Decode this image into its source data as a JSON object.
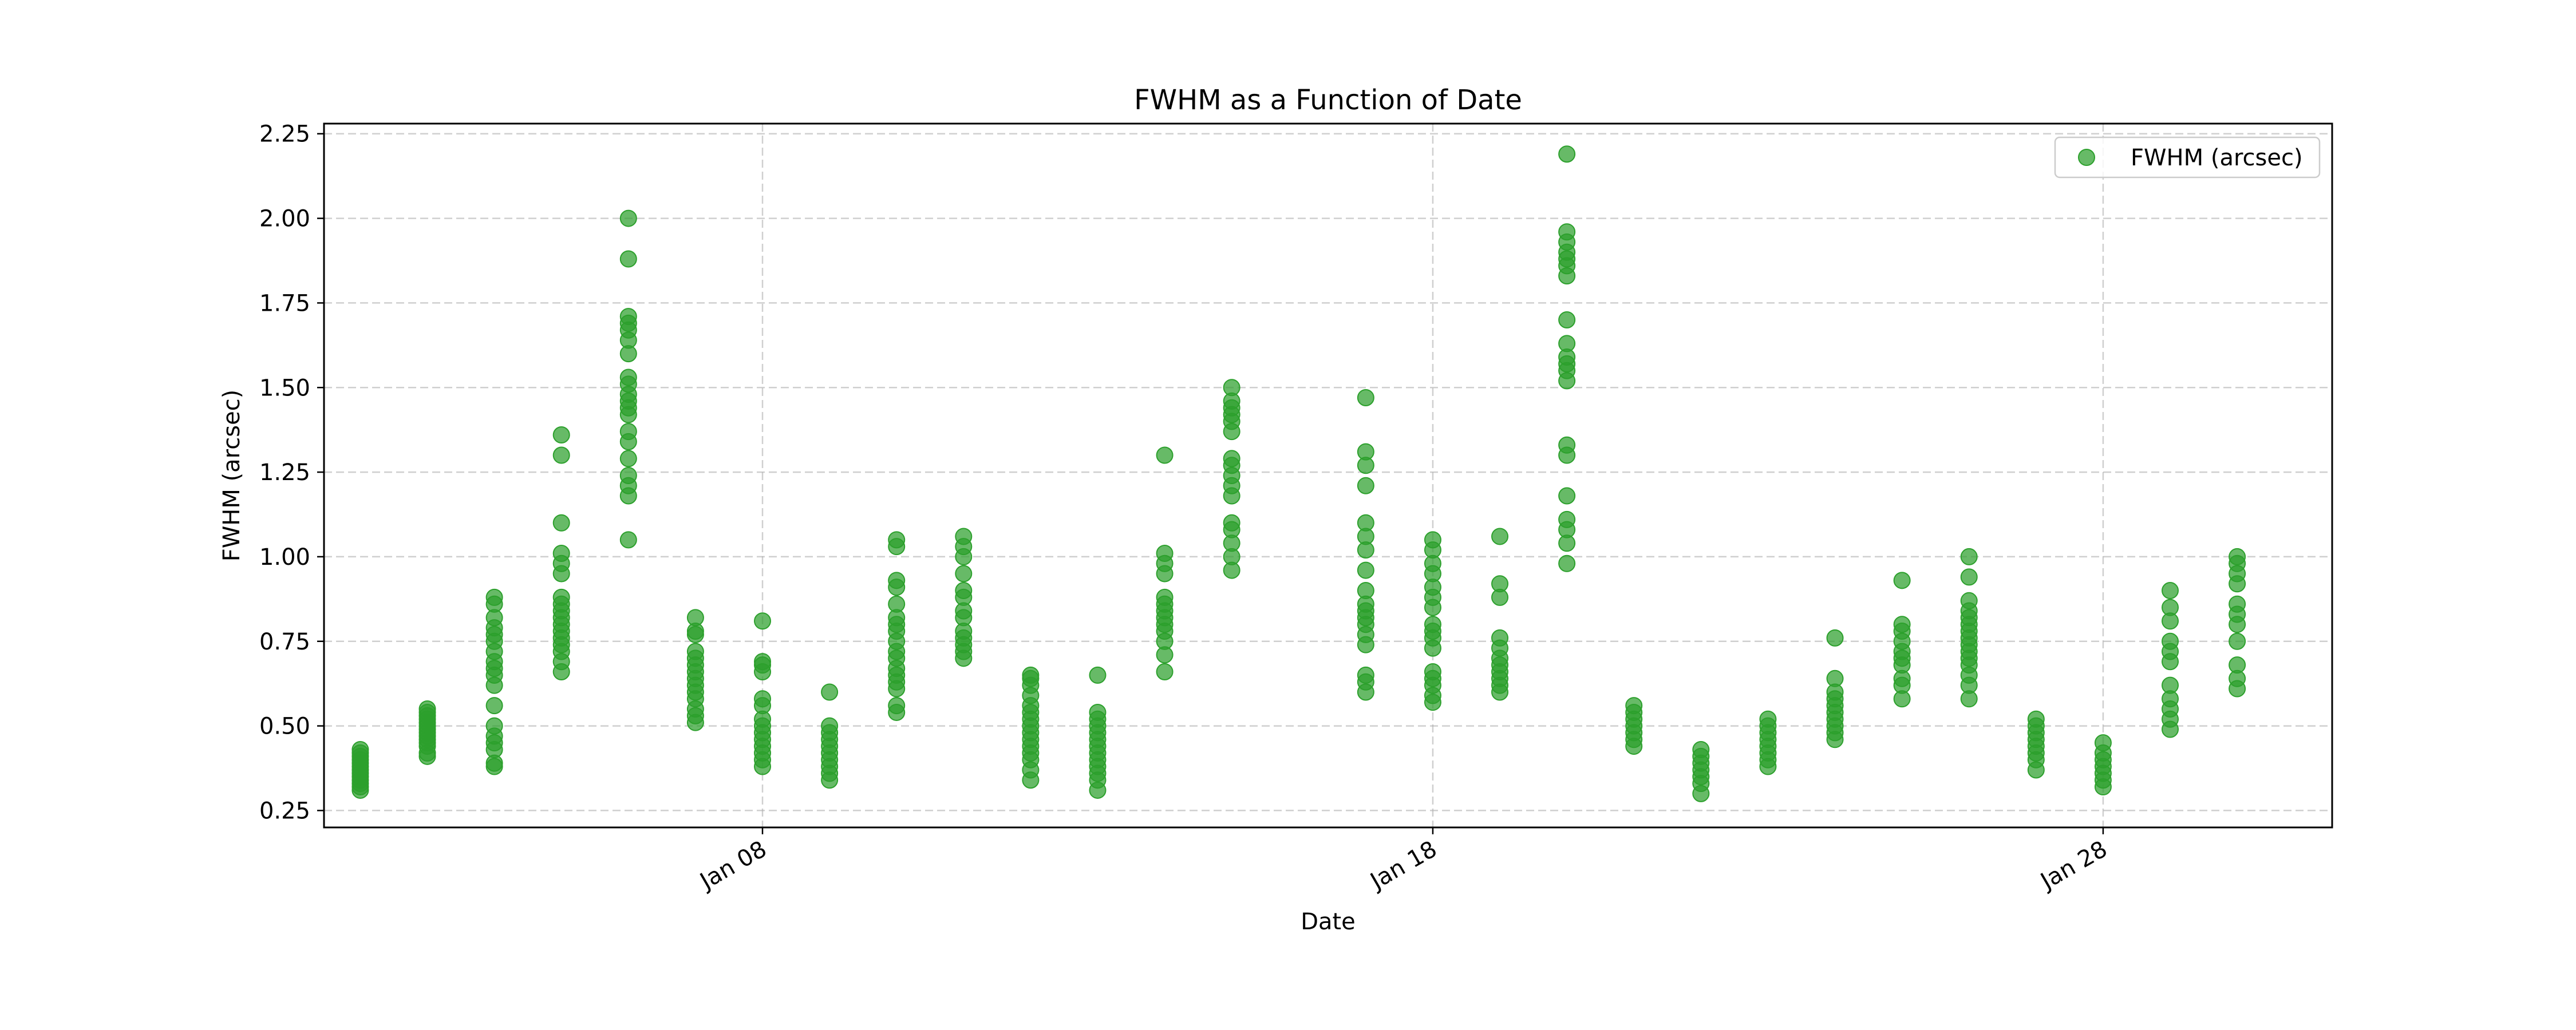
{
  "chart_data": {
    "type": "scatter",
    "title": "FWHM as a Function of Date",
    "xlabel": "Date",
    "ylabel": "FWHM (arcsec)",
    "legend": {
      "placement": "top-right",
      "entries": [
        "FWHM (arcsec)"
      ]
    },
    "grid": true,
    "color": "#2ca02c",
    "x_axis_type": "date",
    "x_range": [
      "2024-01-01T11:00",
      "2024-01-31T10:00"
    ],
    "x_ticks": [
      {
        "date": "2024-01-08",
        "label": "Jan 08"
      },
      {
        "date": "2024-01-18",
        "label": "Jan 18"
      },
      {
        "date": "2024-01-28",
        "label": "Jan 28"
      }
    ],
    "ylim": [
      0.2,
      2.28
    ],
    "y_ticks": [
      {
        "value": 0.25,
        "label": "0.25"
      },
      {
        "value": 0.5,
        "label": "0.50"
      },
      {
        "value": 0.75,
        "label": "0.75"
      },
      {
        "value": 1.0,
        "label": "1.00"
      },
      {
        "value": 1.25,
        "label": "1.25"
      },
      {
        "value": 1.5,
        "label": "1.50"
      },
      {
        "value": 1.75,
        "label": "1.75"
      },
      {
        "value": 2.0,
        "label": "2.00"
      },
      {
        "value": 2.25,
        "label": "2.25"
      }
    ],
    "series": [
      {
        "name": "FWHM (arcsec)",
        "groups": [
          {
            "date": "2024-01-02",
            "y": [
              0.31,
              0.32,
              0.33,
              0.34,
              0.35,
              0.36,
              0.37,
              0.38,
              0.39,
              0.4,
              0.41,
              0.42,
              0.43
            ]
          },
          {
            "date": "2024-01-03",
            "y": [
              0.41,
              0.42,
              0.44,
              0.45,
              0.46,
              0.47,
              0.48,
              0.49,
              0.5,
              0.51,
              0.52,
              0.53,
              0.54,
              0.55
            ]
          },
          {
            "date": "2024-01-04",
            "y": [
              0.38,
              0.39,
              0.43,
              0.45,
              0.47,
              0.5,
              0.56,
              0.62,
              0.65,
              0.67,
              0.69,
              0.72,
              0.75,
              0.77,
              0.79,
              0.82,
              0.86,
              0.88
            ]
          },
          {
            "date": "2024-01-05",
            "y": [
              0.66,
              0.69,
              0.72,
              0.74,
              0.76,
              0.78,
              0.8,
              0.82,
              0.84,
              0.86,
              0.88,
              0.95,
              0.98,
              1.01,
              1.1,
              1.3,
              1.36
            ]
          },
          {
            "date": "2024-01-06",
            "y": [
              1.05,
              1.18,
              1.21,
              1.24,
              1.29,
              1.34,
              1.37,
              1.42,
              1.44,
              1.46,
              1.48,
              1.51,
              1.53,
              1.6,
              1.64,
              1.67,
              1.69,
              1.71,
              1.88,
              2.0
            ]
          },
          {
            "date": "2024-01-07",
            "y": [
              0.51,
              0.53,
              0.55,
              0.58,
              0.6,
              0.62,
              0.64,
              0.66,
              0.68,
              0.7,
              0.72,
              0.77,
              0.78,
              0.82
            ]
          },
          {
            "date": "2024-01-08",
            "y": [
              0.38,
              0.4,
              0.42,
              0.44,
              0.46,
              0.48,
              0.5,
              0.52,
              0.56,
              0.58,
              0.66,
              0.68,
              0.69,
              0.81
            ]
          },
          {
            "date": "2024-01-09",
            "y": [
              0.34,
              0.36,
              0.38,
              0.4,
              0.42,
              0.44,
              0.46,
              0.48,
              0.5,
              0.6
            ]
          },
          {
            "date": "2024-01-10",
            "y": [
              0.54,
              0.56,
              0.61,
              0.63,
              0.65,
              0.67,
              0.7,
              0.72,
              0.75,
              0.78,
              0.8,
              0.82,
              0.86,
              0.91,
              0.93,
              1.03,
              1.05
            ]
          },
          {
            "date": "2024-01-11",
            "y": [
              0.7,
              0.72,
              0.74,
              0.76,
              0.78,
              0.82,
              0.84,
              0.88,
              0.9,
              0.95,
              1.0,
              1.03,
              1.06
            ]
          },
          {
            "date": "2024-01-12",
            "y": [
              0.34,
              0.37,
              0.4,
              0.42,
              0.44,
              0.46,
              0.48,
              0.5,
              0.52,
              0.54,
              0.56,
              0.59,
              0.62,
              0.64,
              0.65
            ]
          },
          {
            "date": "2024-01-13",
            "y": [
              0.31,
              0.34,
              0.36,
              0.38,
              0.4,
              0.42,
              0.44,
              0.46,
              0.48,
              0.5,
              0.52,
              0.54,
              0.65
            ]
          },
          {
            "date": "2024-01-14",
            "y": [
              0.66,
              0.71,
              0.75,
              0.78,
              0.8,
              0.82,
              0.84,
              0.86,
              0.88,
              0.95,
              0.98,
              1.01,
              1.3
            ]
          },
          {
            "date": "2024-01-15",
            "y": [
              0.96,
              1.0,
              1.04,
              1.08,
              1.1,
              1.18,
              1.21,
              1.24,
              1.27,
              1.29,
              1.37,
              1.4,
              1.42,
              1.44,
              1.46,
              1.5
            ]
          },
          {
            "date": "2024-01-17",
            "y": [
              0.6,
              0.63,
              0.65,
              0.74,
              0.77,
              0.8,
              0.82,
              0.84,
              0.86,
              0.9,
              0.96,
              1.02,
              1.06,
              1.1,
              1.21,
              1.27,
              1.31,
              1.47
            ]
          },
          {
            "date": "2024-01-18",
            "y": [
              0.57,
              0.59,
              0.62,
              0.64,
              0.66,
              0.73,
              0.76,
              0.78,
              0.8,
              0.85,
              0.88,
              0.91,
              0.95,
              0.98,
              1.02,
              1.05
            ]
          },
          {
            "date": "2024-01-19",
            "y": [
              0.6,
              0.62,
              0.64,
              0.66,
              0.68,
              0.7,
              0.73,
              0.76,
              0.88,
              0.92,
              1.06
            ]
          },
          {
            "date": "2024-01-20",
            "y": [
              0.98,
              1.04,
              1.08,
              1.11,
              1.18,
              1.3,
              1.33,
              1.52,
              1.55,
              1.57,
              1.59,
              1.63,
              1.7,
              1.83,
              1.86,
              1.88,
              1.9,
              1.93,
              1.96,
              2.19
            ]
          },
          {
            "date": "2024-01-21",
            "y": [
              0.44,
              0.46,
              0.48,
              0.5,
              0.52,
              0.54,
              0.56
            ]
          },
          {
            "date": "2024-01-22",
            "y": [
              0.3,
              0.33,
              0.35,
              0.37,
              0.39,
              0.41,
              0.43
            ]
          },
          {
            "date": "2024-01-23",
            "y": [
              0.38,
              0.4,
              0.42,
              0.44,
              0.46,
              0.48,
              0.5,
              0.52
            ]
          },
          {
            "date": "2024-01-24",
            "y": [
              0.46,
              0.48,
              0.5,
              0.52,
              0.54,
              0.56,
              0.58,
              0.6,
              0.64,
              0.76
            ]
          },
          {
            "date": "2024-01-25",
            "y": [
              0.58,
              0.62,
              0.64,
              0.68,
              0.7,
              0.72,
              0.75,
              0.78,
              0.8,
              0.93
            ]
          },
          {
            "date": "2024-01-26",
            "y": [
              0.58,
              0.62,
              0.65,
              0.68,
              0.7,
              0.72,
              0.74,
              0.76,
              0.78,
              0.8,
              0.82,
              0.84,
              0.87,
              0.94,
              1.0
            ]
          },
          {
            "date": "2024-01-27",
            "y": [
              0.37,
              0.4,
              0.42,
              0.44,
              0.46,
              0.48,
              0.5,
              0.52
            ]
          },
          {
            "date": "2024-01-28",
            "y": [
              0.32,
              0.34,
              0.36,
              0.38,
              0.4,
              0.42,
              0.45
            ]
          },
          {
            "date": "2024-01-29",
            "y": [
              0.49,
              0.52,
              0.55,
              0.58,
              0.62,
              0.69,
              0.72,
              0.75,
              0.81,
              0.85,
              0.9
            ]
          },
          {
            "date": "2024-01-30",
            "y": [
              0.61,
              0.64,
              0.68,
              0.75,
              0.8,
              0.83,
              0.86,
              0.92,
              0.95,
              0.98,
              1.0
            ]
          }
        ]
      }
    ]
  }
}
